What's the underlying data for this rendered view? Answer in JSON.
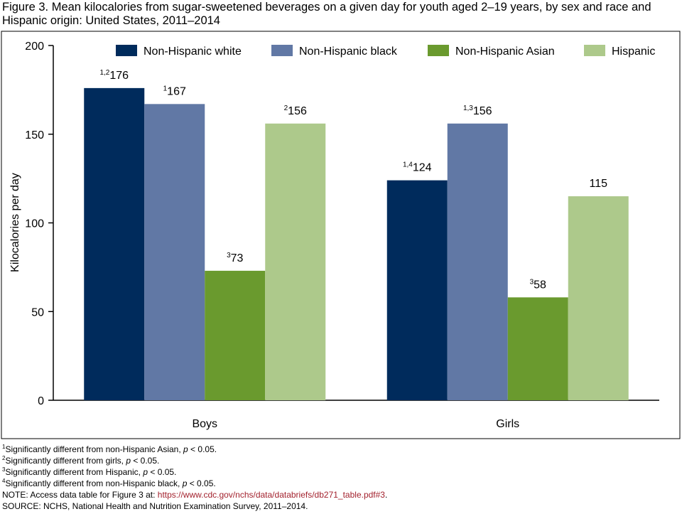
{
  "chart_data": {
    "type": "bar",
    "title": "Figure 3. Mean kilocalories from sugar-sweetened beverages on a given day for youth aged 2–19 years, by sex and race and Hispanic origin: United States, 2011–2014",
    "y_label": "Kilocalories per day",
    "categories": [
      "Boys",
      "Girls"
    ],
    "series": [
      {
        "name": "Non-Hispanic white",
        "color": "#002b5c",
        "values": [
          176,
          124
        ],
        "notes": [
          "1,2",
          "1,4"
        ]
      },
      {
        "name": "Non-Hispanic black",
        "color": "#6178a5",
        "values": [
          167,
          156
        ],
        "notes": [
          "1",
          "1,3"
        ]
      },
      {
        "name": "Non-Hispanic Asian",
        "color": "#6a9a2e",
        "values": [
          73,
          58
        ],
        "notes": [
          "3",
          "3"
        ]
      },
      {
        "name": "Hispanic",
        "color": "#adc98b",
        "values": [
          156,
          115
        ],
        "notes": [
          "2",
          null
        ]
      }
    ],
    "ylim": [
      0,
      200
    ],
    "yticks": [
      0,
      50,
      100,
      150,
      200
    ],
    "grid": false,
    "legend": "top"
  },
  "footnotes": [
    {
      "mark": "1",
      "parts": [
        "Significantly different from non-Hispanic Asian, ",
        "p",
        " < 0.05."
      ]
    },
    {
      "mark": "2",
      "parts": [
        "Significantly different from girls, ",
        "p",
        " < 0.05."
      ]
    },
    {
      "mark": "3",
      "parts": [
        "Significantly different from Hispanic, ",
        "p",
        " < 0.05."
      ]
    },
    {
      "mark": "4",
      "parts": [
        "Significantly different from non-Hispanic black, ",
        "p",
        " < 0.05."
      ]
    }
  ],
  "note": {
    "text": "NOTE: Access data table for Figure 3 at: ",
    "link": "https://www.cdc.gov/nchs/data/databriefs/db271_table.pdf#3",
    "end": "."
  },
  "source": "SOURCE: NCHS, National Health and Nutrition Examination Survey, 2011–2014."
}
